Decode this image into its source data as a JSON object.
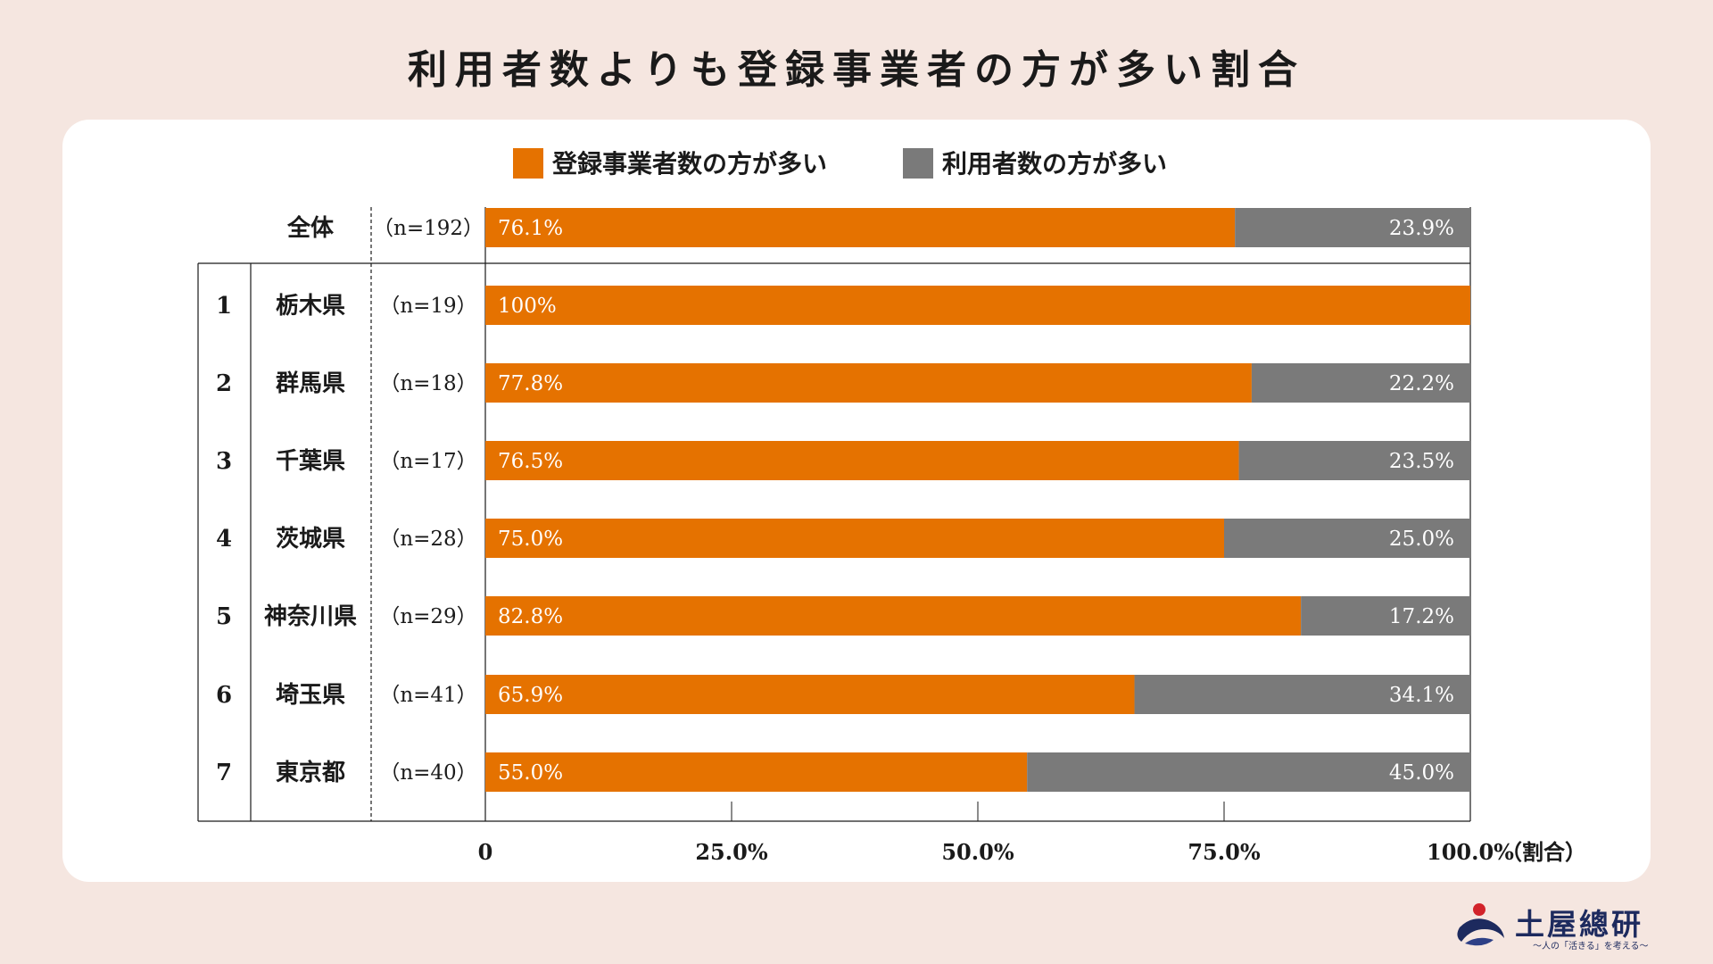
{
  "title": "利用者数よりも登録事業者の方が多い割合",
  "colors": {
    "primary": "#e57200",
    "secondary": "#7a7a7a",
    "background": "#f5e6e0",
    "card": "#ffffff"
  },
  "logo": {
    "name": "土屋總研",
    "tagline": "〜人の「活きる」を考える〜"
  },
  "chart_data": {
    "type": "bar",
    "orientation": "horizontal-stacked-100",
    "legend": [
      "登録事業者数の方が多い",
      "利用者数の方が多い"
    ],
    "overall": {
      "label": "全体",
      "n": "（n=192）",
      "values": [
        76.1,
        23.9
      ],
      "labels": [
        "76.1%",
        "23.9%"
      ]
    },
    "rows": [
      {
        "rank": "1",
        "label": "栃木県",
        "n": "（n=19）",
        "values": [
          100,
          0
        ],
        "labels": [
          "100%",
          ""
        ]
      },
      {
        "rank": "2",
        "label": "群馬県",
        "n": "（n=18）",
        "values": [
          77.8,
          22.2
        ],
        "labels": [
          "77.8%",
          "22.2%"
        ]
      },
      {
        "rank": "3",
        "label": "千葉県",
        "n": "（n=17）",
        "values": [
          76.5,
          23.5
        ],
        "labels": [
          "76.5%",
          "23.5%"
        ]
      },
      {
        "rank": "4",
        "label": "茨城県",
        "n": "（n=28）",
        "values": [
          75.0,
          25.0
        ],
        "labels": [
          "75.0%",
          "25.0%"
        ]
      },
      {
        "rank": "5",
        "label": "神奈川県",
        "n": "（n=29）",
        "values": [
          82.8,
          17.2
        ],
        "labels": [
          "82.8%",
          "17.2%"
        ]
      },
      {
        "rank": "6",
        "label": "埼玉県",
        "n": "（n=41）",
        "values": [
          65.9,
          34.1
        ],
        "labels": [
          "65.9%",
          "34.1%"
        ]
      },
      {
        "rank": "7",
        "label": "東京都",
        "n": "（n=40）",
        "values": [
          55.0,
          45.0
        ],
        "labels": [
          "55.0%",
          "45.0%"
        ]
      }
    ],
    "xticks": [
      0,
      25,
      50,
      75,
      100
    ],
    "xtick_labels": [
      "0",
      "25.0%",
      "50.0%",
      "75.0%",
      "100.0%"
    ],
    "xlabel": "（割合）",
    "xlim": [
      0,
      100
    ]
  }
}
